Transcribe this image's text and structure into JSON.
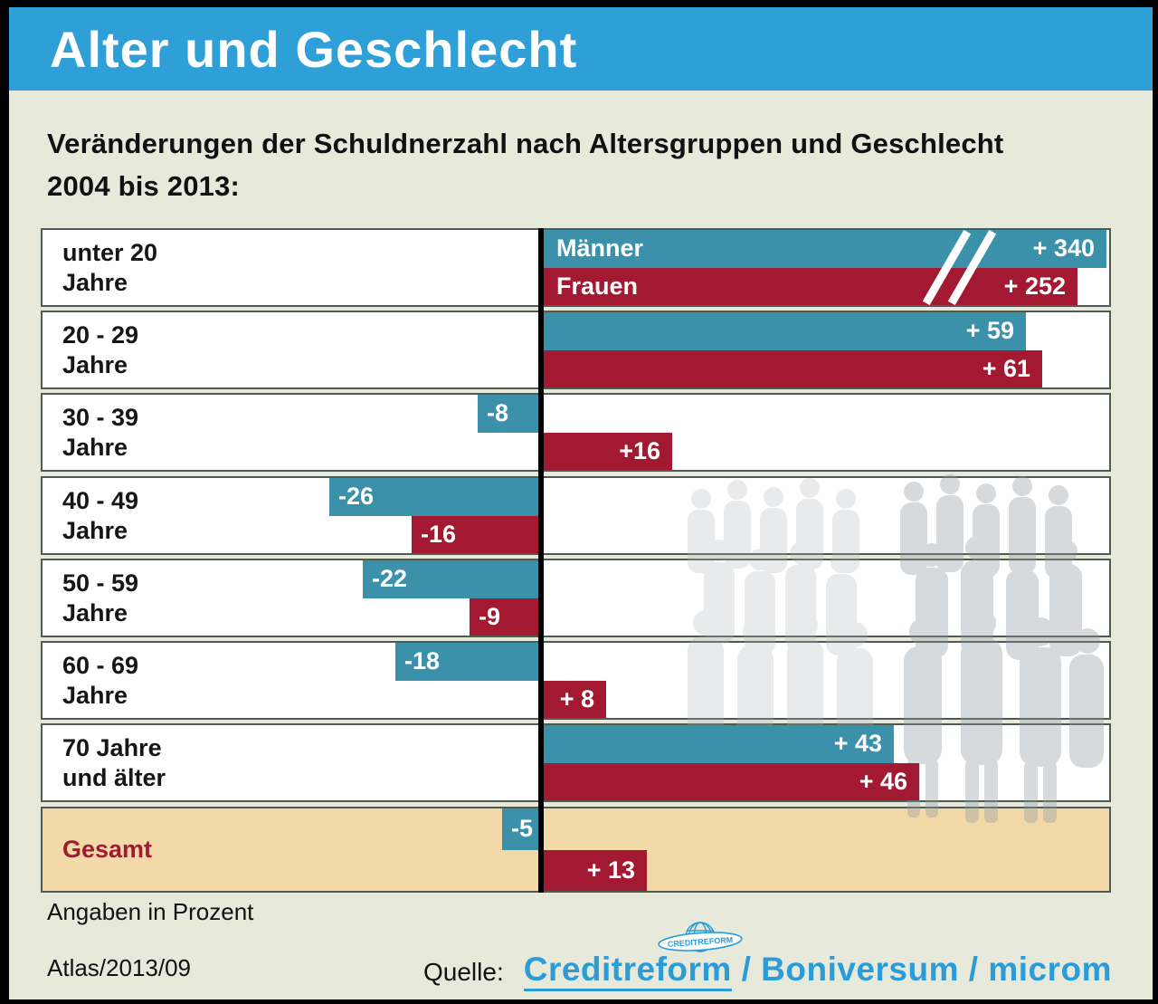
{
  "header": {
    "title": "Alter und Geschlecht"
  },
  "subtitle_line1": "Veränderungen der Schuldnerzahl nach Altersgruppen und Geschlecht",
  "subtitle_line2": "2004 bis 2013:",
  "footer": {
    "note": "Angaben in Prozent",
    "edition": "Atlas/2013/09",
    "source_label": "Quelle:",
    "source_creditreform": "Creditreform",
    "source_rest": " / Boniversum / microm",
    "logo_text": "CREDITREFORM"
  },
  "colors": {
    "header_blue": "#2F9FD8",
    "background": "#E7EADB",
    "men_teal": "#3B91AA",
    "women_crimson": "#A31931",
    "gesamt_bg": "#F3D8A8",
    "gesamt_label": "#9E1B32",
    "row_border": "#4E5A52",
    "source_blue": "#2B9CD8"
  },
  "chart_data": {
    "type": "bar",
    "orientation": "horizontal",
    "title": "Alter und Geschlecht",
    "subtitle": "Veränderungen der Schuldnerzahl nach Altersgruppen und Geschlecht 2004 bis 2013:",
    "unit": "Prozent",
    "value_note": "Angaben in Prozent",
    "legend_position": "inline-first-row",
    "grid": false,
    "zero_axis_line": true,
    "categories": [
      [
        "unter 20",
        "Jahre"
      ],
      [
        "20 - 29",
        "Jahre"
      ],
      [
        "30 - 39",
        "Jahre"
      ],
      [
        "40 - 49",
        "Jahre"
      ],
      [
        "50 - 59",
        "Jahre"
      ],
      [
        "60 - 69",
        "Jahre"
      ],
      [
        "70 Jahre",
        "und älter"
      ],
      [
        "Gesamt"
      ]
    ],
    "series": [
      {
        "name": "Männer",
        "color": "#3B91AA",
        "values": [
          340,
          59,
          -8,
          -26,
          -22,
          -18,
          43,
          -5
        ],
        "labels": [
          "+ 340",
          "+ 59",
          "-8",
          "-26",
          "-22",
          "-18",
          "+ 43",
          "-5"
        ]
      },
      {
        "name": "Frauen",
        "color": "#A31931",
        "values": [
          252,
          61,
          16,
          -16,
          -9,
          8,
          46,
          13
        ],
        "labels": [
          "+ 252",
          "+ 61",
          "+16",
          "-16",
          "-9",
          "+ 8",
          "+ 46",
          "+ 13"
        ]
      }
    ],
    "broken_axis_row_index": 0,
    "total_row_index": 7
  }
}
